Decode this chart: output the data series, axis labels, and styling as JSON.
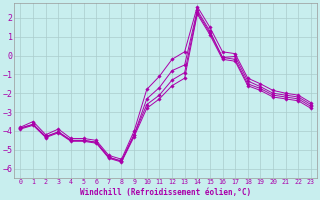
{
  "xlabel": "Windchill (Refroidissement éolien,°C)",
  "bg_color": "#c8eeee",
  "grid_color": "#aacccc",
  "line_color": "#aa00aa",
  "xlim_min": -0.5,
  "xlim_max": 23.5,
  "ylim_min": -6.5,
  "ylim_max": 2.8,
  "xticks": [
    0,
    1,
    2,
    3,
    4,
    5,
    6,
    7,
    8,
    9,
    10,
    11,
    12,
    13,
    14,
    15,
    16,
    17,
    18,
    19,
    20,
    21,
    22,
    23
  ],
  "yticks": [
    -6,
    -5,
    -4,
    -3,
    -2,
    -1,
    0,
    1,
    2
  ],
  "lines": [
    [
      -3.8,
      -3.5,
      -4.2,
      -3.9,
      -4.4,
      -4.4,
      -4.5,
      -5.3,
      -5.5,
      -4.0,
      -1.8,
      -1.1,
      -0.2,
      0.2,
      2.6,
      1.5,
      0.2,
      0.1,
      -1.2,
      -1.5,
      -1.85,
      -2.0,
      -2.1,
      -2.5
    ],
    [
      -3.85,
      -3.65,
      -4.3,
      -4.05,
      -4.5,
      -4.5,
      -4.6,
      -5.4,
      -5.6,
      -4.2,
      -2.3,
      -1.7,
      -0.8,
      -0.5,
      2.4,
      1.3,
      -0.1,
      -0.05,
      -1.35,
      -1.65,
      -2.0,
      -2.1,
      -2.2,
      -2.6
    ],
    [
      -3.85,
      -3.65,
      -4.3,
      -4.05,
      -4.5,
      -4.5,
      -4.6,
      -5.4,
      -5.6,
      -4.2,
      -2.6,
      -2.1,
      -1.3,
      -0.9,
      2.3,
      1.2,
      -0.1,
      -0.2,
      -1.5,
      -1.75,
      -2.1,
      -2.2,
      -2.3,
      -2.7
    ],
    [
      -3.9,
      -3.7,
      -4.35,
      -4.1,
      -4.55,
      -4.55,
      -4.65,
      -5.45,
      -5.65,
      -4.3,
      -2.8,
      -2.3,
      -1.6,
      -1.2,
      2.2,
      1.1,
      -0.2,
      -0.3,
      -1.6,
      -1.85,
      -2.2,
      -2.3,
      -2.4,
      -2.8
    ]
  ]
}
